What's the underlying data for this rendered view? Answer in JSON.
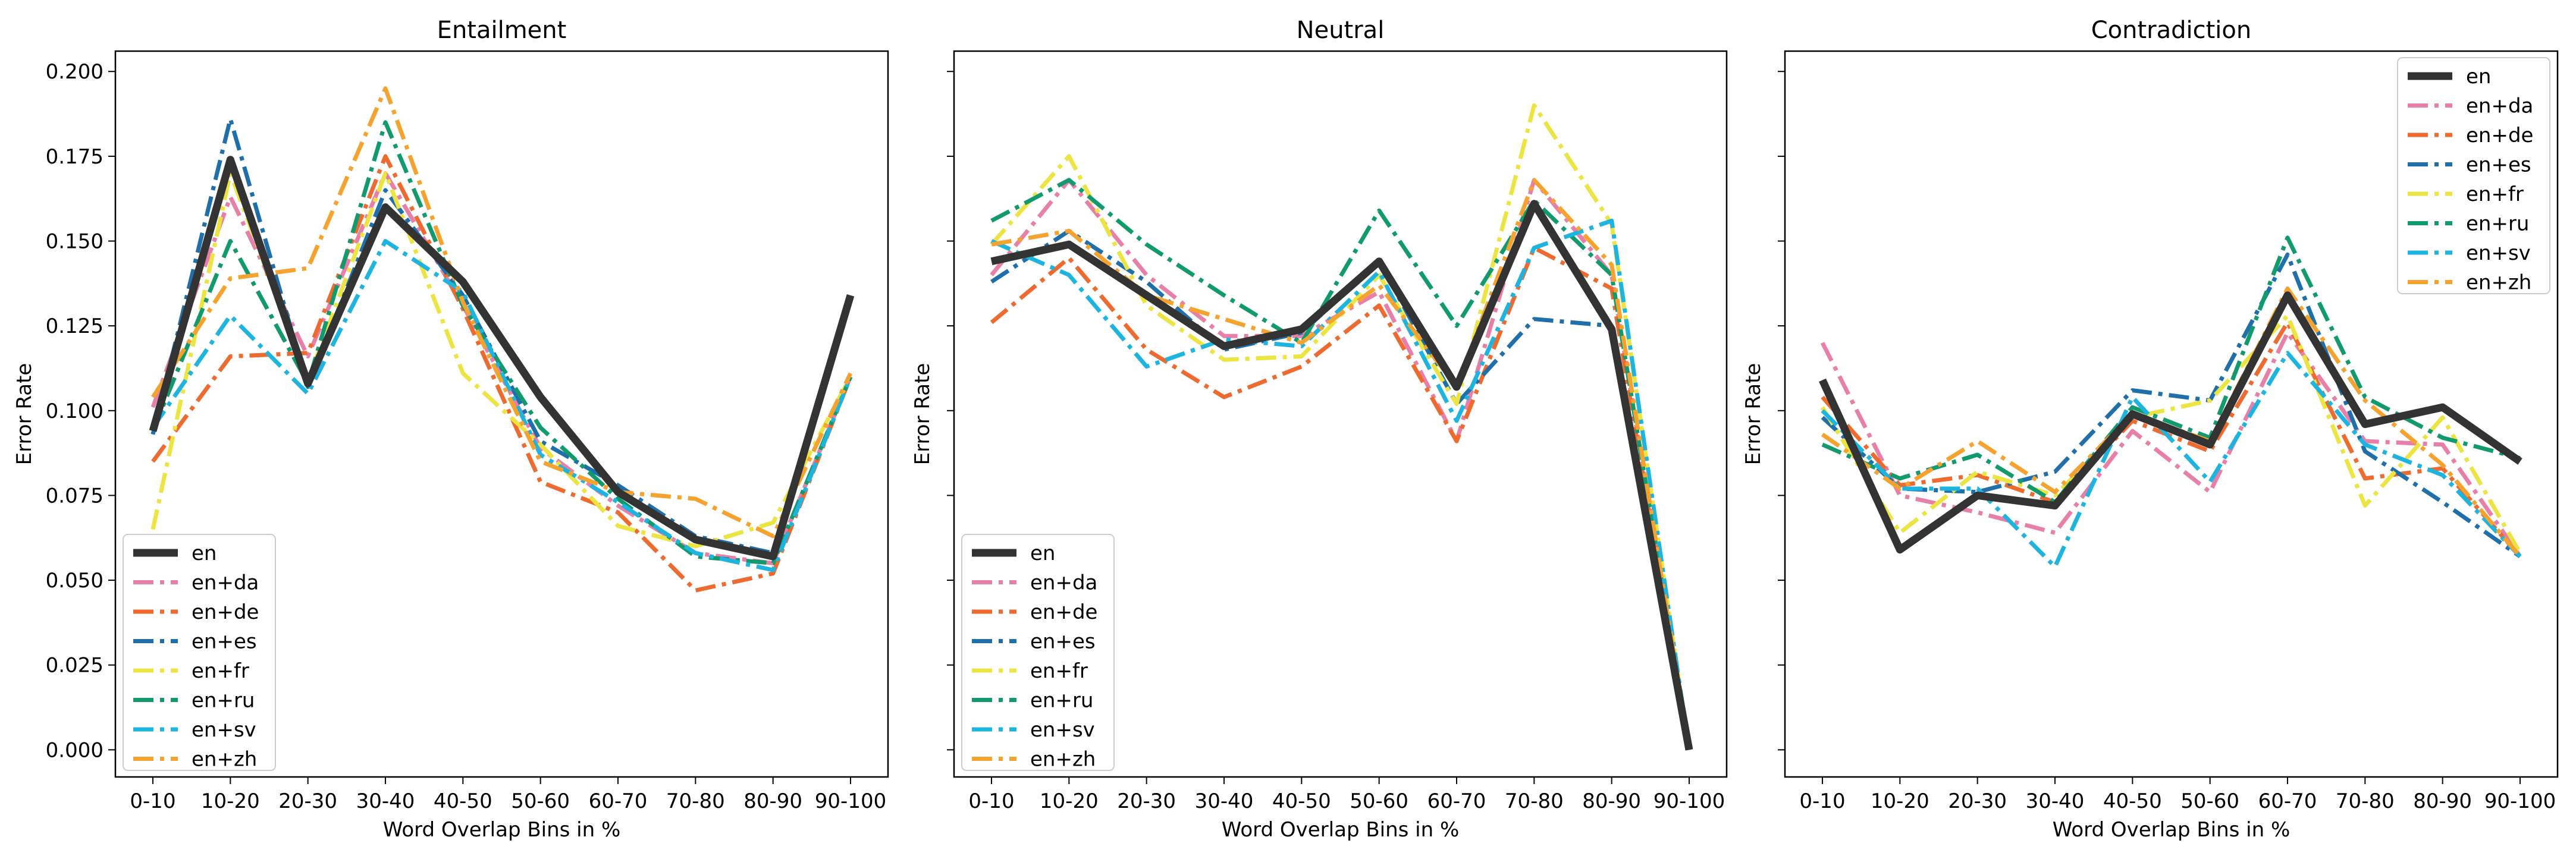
{
  "chart_data": {
    "type": "line",
    "ylabel": "Error Rate",
    "xlabel": "Word Overlap Bins in %",
    "categories": [
      "0-10",
      "10-20",
      "20-30",
      "30-40",
      "40-50",
      "50-60",
      "60-70",
      "70-80",
      "80-90",
      "90-100"
    ],
    "ylim": [
      -0.008,
      0.206
    ],
    "yticks": [
      "0.000",
      "0.025",
      "0.050",
      "0.075",
      "0.100",
      "0.125",
      "0.150",
      "0.175",
      "0.200"
    ],
    "styles": {
      "en": {
        "color": "#333333"
      },
      "en+da": {
        "color": "#E87FA8"
      },
      "en+de": {
        "color": "#EE6A2E"
      },
      "en+es": {
        "color": "#1F6FAB"
      },
      "en+fr": {
        "color": "#EBE441"
      },
      "en+ru": {
        "color": "#119A6E"
      },
      "en+sv": {
        "color": "#1DB4E0"
      },
      "en+zh": {
        "color": "#F5A22E"
      }
    },
    "panels": [
      {
        "title": "Entailment",
        "legend_position": "lower-left",
        "series": [
          {
            "name": "en",
            "values": [
              0.094,
              0.174,
              0.108,
              0.16,
              0.138,
              0.104,
              0.076,
              0.062,
              0.057,
              0.134
            ]
          },
          {
            "name": "en+da",
            "values": [
              0.101,
              0.163,
              0.116,
              0.17,
              0.131,
              0.089,
              0.072,
              0.058,
              0.055,
              0.11
            ]
          },
          {
            "name": "en+de",
            "values": [
              0.085,
              0.116,
              0.117,
              0.175,
              0.13,
              0.079,
              0.07,
              0.047,
              0.052,
              0.11
            ]
          },
          {
            "name": "en+es",
            "values": [
              0.093,
              0.186,
              0.107,
              0.165,
              0.134,
              0.091,
              0.078,
              0.063,
              0.058,
              0.133
            ]
          },
          {
            "name": "en+fr",
            "values": [
              0.065,
              0.17,
              0.109,
              0.17,
              0.111,
              0.09,
              0.066,
              0.06,
              0.067,
              0.11
            ]
          },
          {
            "name": "en+ru",
            "values": [
              0.094,
              0.15,
              0.108,
              0.185,
              0.131,
              0.095,
              0.074,
              0.057,
              0.055,
              0.11
            ]
          },
          {
            "name": "en+sv",
            "values": [
              0.095,
              0.128,
              0.105,
              0.15,
              0.135,
              0.087,
              0.073,
              0.058,
              0.053,
              0.11
            ]
          },
          {
            "name": "en+zh",
            "values": [
              0.104,
              0.139,
              0.142,
              0.195,
              0.132,
              0.085,
              0.076,
              0.074,
              0.063,
              0.111
            ]
          }
        ]
      },
      {
        "title": "Neutral",
        "legend_position": "lower-left",
        "series": [
          {
            "name": "en",
            "values": [
              0.144,
              0.149,
              0.134,
              0.119,
              0.124,
              0.144,
              0.107,
              0.161,
              0.124,
              0.0
            ]
          },
          {
            "name": "en+da",
            "values": [
              0.14,
              0.168,
              0.14,
              0.122,
              0.122,
              0.135,
              0.091,
              0.168,
              0.14,
              0.0
            ]
          },
          {
            "name": "en+de",
            "values": [
              0.126,
              0.145,
              0.118,
              0.104,
              0.113,
              0.131,
              0.091,
              0.148,
              0.136,
              0.0
            ]
          },
          {
            "name": "en+es",
            "values": [
              0.138,
              0.153,
              0.138,
              0.118,
              0.123,
              0.144,
              0.102,
              0.127,
              0.125,
              0.0
            ]
          },
          {
            "name": "en+fr",
            "values": [
              0.149,
              0.175,
              0.131,
              0.115,
              0.116,
              0.14,
              0.102,
              0.19,
              0.155,
              0.0
            ]
          },
          {
            "name": "en+ru",
            "values": [
              0.156,
              0.168,
              0.149,
              0.134,
              0.12,
              0.159,
              0.125,
              0.162,
              0.14,
              0.0
            ]
          },
          {
            "name": "en+sv",
            "values": [
              0.15,
              0.14,
              0.113,
              0.121,
              0.119,
              0.141,
              0.097,
              0.148,
              0.156,
              0.0
            ]
          },
          {
            "name": "en+zh",
            "values": [
              0.149,
              0.153,
              0.134,
              0.127,
              0.12,
              0.137,
              0.107,
              0.168,
              0.143,
              0.0
            ]
          }
        ]
      },
      {
        "title": "Contradiction",
        "legend_position": "upper-right",
        "series": [
          {
            "name": "en",
            "values": [
              0.109,
              0.059,
              0.075,
              0.072,
              0.099,
              0.09,
              0.134,
              0.096,
              0.101,
              0.085
            ]
          },
          {
            "name": "en+da",
            "values": [
              0.12,
              0.075,
              0.07,
              0.064,
              0.094,
              0.076,
              0.123,
              0.091,
              0.09,
              0.057
            ]
          },
          {
            "name": "en+de",
            "values": [
              0.104,
              0.078,
              0.081,
              0.073,
              0.097,
              0.088,
              0.126,
              0.08,
              0.083,
              0.057
            ]
          },
          {
            "name": "en+es",
            "values": [
              0.098,
              0.077,
              0.076,
              0.082,
              0.106,
              0.103,
              0.146,
              0.088,
              0.073,
              0.057
            ]
          },
          {
            "name": "en+fr",
            "values": [
              0.101,
              0.064,
              0.082,
              0.075,
              0.098,
              0.103,
              0.128,
              0.072,
              0.098,
              0.058
            ]
          },
          {
            "name": "en+ru",
            "values": [
              0.09,
              0.08,
              0.087,
              0.073,
              0.101,
              0.092,
              0.151,
              0.104,
              0.092,
              0.086
            ]
          },
          {
            "name": "en+sv",
            "values": [
              0.1,
              0.077,
              0.077,
              0.054,
              0.104,
              0.079,
              0.117,
              0.09,
              0.081,
              0.057
            ]
          },
          {
            "name": "en+zh",
            "values": [
              0.093,
              0.077,
              0.091,
              0.076,
              0.099,
              0.091,
              0.136,
              0.103,
              0.084,
              0.057
            ]
          }
        ]
      }
    ]
  }
}
